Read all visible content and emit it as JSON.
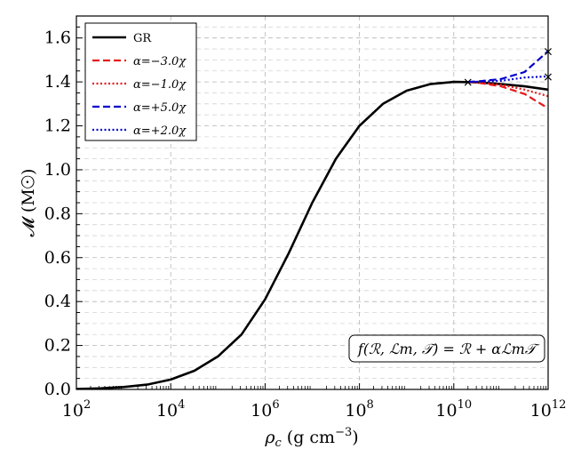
{
  "chart_data": {
    "type": "line",
    "title": "",
    "xlabel": "ρ_c (g cm^-3)",
    "xlabel_main": "ρ",
    "xlabel_sub": "c",
    "xlabel_unit": " (g cm",
    "xlabel_exp": "−3",
    "xlabel_close": ")",
    "ylabel": "𝓜 (M☉)",
    "xscale": "log",
    "xlim": [
      100,
      1000000000000
    ],
    "ylim": [
      0.0,
      1.7
    ],
    "grid": true,
    "xticks": [
      {
        "value": 100,
        "base": "10",
        "exp": "2"
      },
      {
        "value": 10000,
        "base": "10",
        "exp": "4"
      },
      {
        "value": 1000000,
        "base": "10",
        "exp": "6"
      },
      {
        "value": 100000000,
        "base": "10",
        "exp": "8"
      },
      {
        "value": 10000000000,
        "base": "10",
        "exp": "10"
      },
      {
        "value": 1000000000000,
        "base": "10",
        "exp": "12"
      }
    ],
    "yticks": [
      "0.0",
      "0.2",
      "0.4",
      "0.6",
      "0.8",
      "1.0",
      "1.2",
      "1.4",
      "1.6"
    ],
    "legend_position": "top-left",
    "annotation": "f(R, L_m, T) = R + αL_mT",
    "annotation_text": "f(ℛ, ℒm, 𝒯) = ℛ + αℒm𝒯",
    "series": [
      {
        "name": "GR",
        "color": "#000000",
        "style": "solid",
        "x": [
          100,
          316,
          1000,
          3162,
          10000,
          31623,
          100000,
          316228,
          1000000,
          3162278,
          10000000,
          31622777,
          100000000,
          316227766,
          1000000000,
          3162277660,
          10000000000,
          31622776602,
          100000000000,
          316227766017,
          1000000000000
        ],
        "y": [
          0.002,
          0.005,
          0.011,
          0.022,
          0.045,
          0.085,
          0.15,
          0.25,
          0.41,
          0.62,
          0.85,
          1.05,
          1.2,
          1.3,
          1.36,
          1.39,
          1.4,
          1.398,
          1.39,
          1.38,
          1.365
        ]
      },
      {
        "name": "α=−3.0χ",
        "color": "#e41a1c",
        "style": "dashed",
        "x": [
          20000000000,
          31622776602,
          100000000000,
          316227766017,
          1000000000000
        ],
        "y": [
          1.4,
          1.397,
          1.38,
          1.345,
          1.28
        ]
      },
      {
        "name": "α=−1.0χ",
        "color": "#e41a1c",
        "style": "dotted",
        "x": [
          20000000000,
          31622776602,
          100000000000,
          316227766017,
          1000000000000
        ],
        "y": [
          1.4,
          1.398,
          1.387,
          1.365,
          1.335
        ]
      },
      {
        "name": "α=+5.0χ",
        "color": "#0000cc",
        "style": "dashed",
        "x": [
          20000000000,
          31622776602,
          100000000000,
          316227766017,
          1000000000000
        ],
        "y": [
          1.4,
          1.402,
          1.413,
          1.445,
          1.54
        ]
      },
      {
        "name": "α=+2.0χ",
        "color": "#0000cc",
        "style": "dotted",
        "x": [
          20000000000,
          31622776602,
          100000000000,
          316227766017,
          1000000000000
        ],
        "y": [
          1.4,
          1.401,
          1.405,
          1.42,
          1.425
        ]
      }
    ],
    "markers": [
      {
        "x": 20000000000,
        "y": 1.4,
        "symbol": "×"
      },
      {
        "x": 1000000000000,
        "y": 1.54,
        "symbol": "×"
      },
      {
        "x": 1000000000000,
        "y": 1.425,
        "symbol": "×"
      }
    ]
  }
}
